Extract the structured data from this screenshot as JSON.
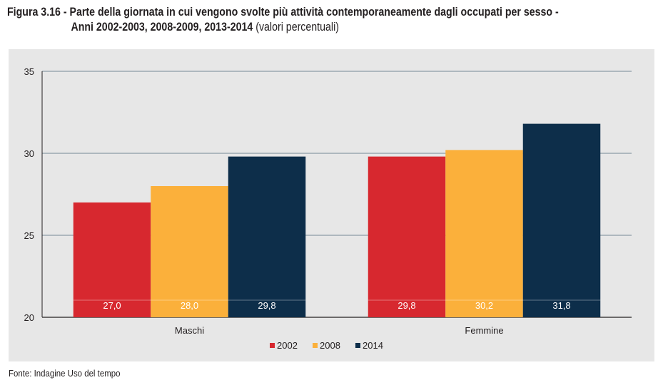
{
  "figure": {
    "number": "Figura 3.16 -",
    "title_line1": "Parte della giornata in cui vengono svolte più attività contemporaneamente dagli occupati per sesso -",
    "title_line2": "Anni 2002-2003, 2008-2009, 2013-2014",
    "title_unit": "(valori percentuali)",
    "source": "Fonte: Indagine Uso del tempo"
  },
  "chart_data": {
    "type": "bar",
    "categories": [
      "Maschi",
      "Femmine"
    ],
    "series": [
      {
        "name": "2002",
        "values": [
          27.0,
          29.8
        ],
        "labels": [
          "27,0",
          "29,8"
        ],
        "color": "#d7282f"
      },
      {
        "name": "2008",
        "values": [
          28.0,
          30.2
        ],
        "labels": [
          "28,0",
          "30,2"
        ],
        "color": "#fbb03b"
      },
      {
        "name": "2014",
        "values": [
          29.8,
          31.8
        ],
        "labels": [
          "29,8",
          "31,8"
        ],
        "color": "#0d2e4a"
      }
    ],
    "ylim": [
      20,
      35
    ],
    "yticks": [
      20,
      25,
      30,
      35
    ],
    "ytick_labels": [
      "20",
      "25",
      "30",
      "35"
    ],
    "grid": true,
    "legend": "bottom-center",
    "gridline_color": "#8c9ba5"
  }
}
